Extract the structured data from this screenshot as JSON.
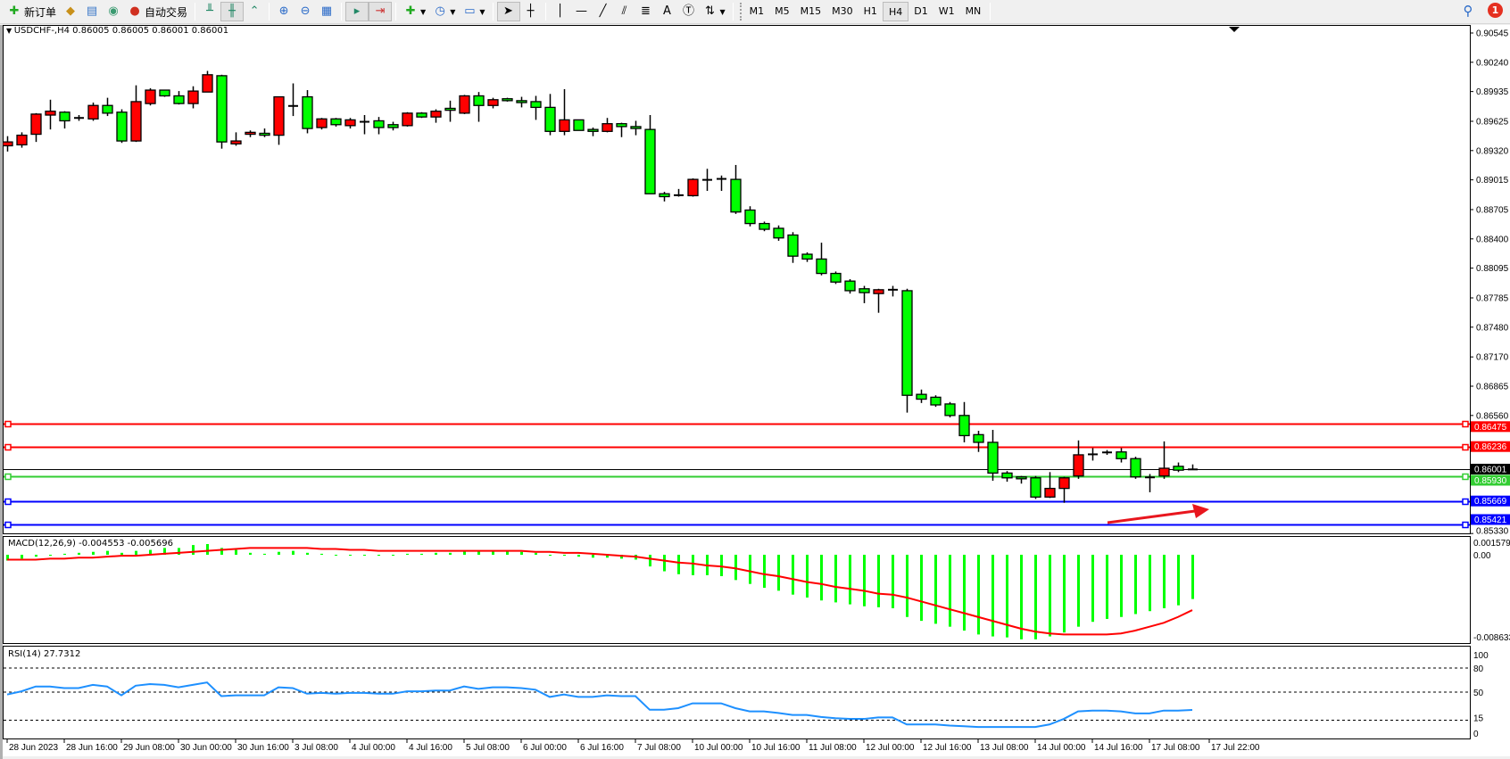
{
  "toolbar": {
    "new_order_label": "新订单",
    "auto_trading_label": "自动交易",
    "icons": [
      "new-order-icon",
      "gold-icon",
      "market-watch-icon",
      "signals-icon",
      "auto-trading-icon",
      "bar-chart-icon",
      "candlestick-icon",
      "line-chart-icon",
      "zoom-in-icon",
      "zoom-out-icon",
      "tile-windows-icon",
      "chart-shift-icon",
      "autoscroll-icon",
      "new-indicator-icon",
      "periods-icon",
      "templates-icon",
      "cursor-icon",
      "crosshair-icon",
      "vertical-line-icon",
      "horizontal-line-icon",
      "trendline-icon",
      "equidistant-channel-icon",
      "fibonacci-icon",
      "text-icon",
      "text-label-icon",
      "arrows-icon"
    ],
    "text_tool": "A",
    "timeframes": [
      "M1",
      "M5",
      "M15",
      "M30",
      "H1",
      "H4",
      "D1",
      "W1",
      "MN"
    ],
    "active_timeframe": "H4",
    "notification_count": "1"
  },
  "chart": {
    "title": "USDCHF-,H4  0.86005 0.86005 0.86001 0.86001",
    "bull_color": "#ff0000",
    "bear_color": "#00ff00"
  },
  "chart_data": [
    {
      "type": "candlestick",
      "symbol": "USDCHF-",
      "timeframe": "H4",
      "price_ticks": [
        "0.90545",
        "0.90240",
        "0.89935",
        "0.89625",
        "0.89320",
        "0.89015",
        "0.88705",
        "0.88400",
        "0.88095",
        "0.87785",
        "0.87480",
        "0.87170",
        "0.86865",
        "0.86560",
        "0.85330"
      ],
      "time_labels": [
        "28 Jun 2023",
        "28 Jun 16:00",
        "29 Jun 08:00",
        "30 Jun 00:00",
        "30 Jun 16:00",
        "3 Jul 08:00",
        "4 Jul 00:00",
        "4 Jul 16:00",
        "5 Jul 08:00",
        "6 Jul 00:00",
        "6 Jul 16:00",
        "7 Jul 08:00",
        "10 Jul 00:00",
        "10 Jul 16:00",
        "11 Jul 08:00",
        "12 Jul 00:00",
        "12 Jul 16:00",
        "13 Jul 08:00",
        "14 Jul 00:00",
        "14 Jul 16:00",
        "17 Jul 08:00",
        "17 Jul 22:00"
      ],
      "ohlc_columns": [
        "open",
        "high",
        "low",
        "close"
      ],
      "candles": [
        [
          0.8937,
          0.8947,
          0.8931,
          0.8941
        ],
        [
          0.8938,
          0.8951,
          0.8935,
          0.8948
        ],
        [
          0.8949,
          0.8971,
          0.8941,
          0.897
        ],
        [
          0.8969,
          0.8985,
          0.8954,
          0.8973
        ],
        [
          0.8972,
          0.8973,
          0.8955,
          0.8963
        ],
        [
          0.8966,
          0.8969,
          0.8963,
          0.8966
        ],
        [
          0.8965,
          0.8982,
          0.8963,
          0.8979
        ],
        [
          0.8979,
          0.8987,
          0.8968,
          0.8971
        ],
        [
          0.8972,
          0.8975,
          0.894,
          0.8942
        ],
        [
          0.8942,
          0.9,
          0.8941,
          0.8983
        ],
        [
          0.8981,
          0.8997,
          0.8979,
          0.8995
        ],
        [
          0.8995,
          0.8995,
          0.8988,
          0.8989
        ],
        [
          0.8989,
          0.8994,
          0.898,
          0.8981
        ],
        [
          0.8981,
          0.8999,
          0.8976,
          0.8994
        ],
        [
          0.8993,
          0.9015,
          0.8993,
          0.9011
        ],
        [
          0.901,
          0.9011,
          0.8934,
          0.8941
        ],
        [
          0.8939,
          0.8951,
          0.8937,
          0.8942
        ],
        [
          0.8949,
          0.8953,
          0.8946,
          0.8951
        ],
        [
          0.895,
          0.8955,
          0.8946,
          0.8948
        ],
        [
          0.8948,
          0.8988,
          0.8938,
          0.8988
        ],
        [
          0.8978,
          0.9002,
          0.8968,
          0.8979
        ],
        [
          0.8988,
          0.8995,
          0.895,
          0.8955
        ],
        [
          0.8956,
          0.8966,
          0.8954,
          0.8965
        ],
        [
          0.8965,
          0.8966,
          0.8957,
          0.8959
        ],
        [
          0.8958,
          0.8966,
          0.8955,
          0.8964
        ],
        [
          0.8962,
          0.8969,
          0.8949,
          0.8962
        ],
        [
          0.8963,
          0.8967,
          0.8949,
          0.8956
        ],
        [
          0.8959,
          0.8962,
          0.8953,
          0.8956
        ],
        [
          0.8958,
          0.8972,
          0.8957,
          0.8971
        ],
        [
          0.8971,
          0.8972,
          0.8966,
          0.8967
        ],
        [
          0.8967,
          0.8975,
          0.8961,
          0.8973
        ],
        [
          0.8976,
          0.8984,
          0.8962,
          0.8974
        ],
        [
          0.8971,
          0.899,
          0.897,
          0.8989
        ],
        [
          0.8989,
          0.8993,
          0.8962,
          0.8979
        ],
        [
          0.8979,
          0.8987,
          0.8976,
          0.8985
        ],
        [
          0.8986,
          0.8987,
          0.8983,
          0.8984
        ],
        [
          0.8984,
          0.8988,
          0.8977,
          0.8982
        ],
        [
          0.8983,
          0.8989,
          0.8964,
          0.8977
        ],
        [
          0.8977,
          0.8991,
          0.8948,
          0.8952
        ],
        [
          0.8952,
          0.8996,
          0.8948,
          0.8964
        ],
        [
          0.8964,
          0.8964,
          0.8953,
          0.8953
        ],
        [
          0.8954,
          0.8956,
          0.8947,
          0.8952
        ],
        [
          0.8952,
          0.8966,
          0.8951,
          0.896
        ],
        [
          0.896,
          0.8961,
          0.8946,
          0.8957
        ],
        [
          0.8957,
          0.8963,
          0.8948,
          0.8955
        ],
        [
          0.8954,
          0.8969,
          0.8887,
          0.8887
        ],
        [
          0.8887,
          0.8889,
          0.8879,
          0.8884
        ],
        [
          0.8886,
          0.8892,
          0.8884,
          0.8885
        ],
        [
          0.8885,
          0.8903,
          0.8884,
          0.8902
        ],
        [
          0.8902,
          0.8913,
          0.889,
          0.8901
        ],
        [
          0.8903,
          0.8906,
          0.889,
          0.8902
        ],
        [
          0.8902,
          0.8917,
          0.8866,
          0.8868
        ],
        [
          0.887,
          0.8874,
          0.8853,
          0.8856
        ],
        [
          0.8856,
          0.8858,
          0.8848,
          0.885
        ],
        [
          0.8851,
          0.8854,
          0.8838,
          0.8841
        ],
        [
          0.8844,
          0.8847,
          0.8815,
          0.8822
        ],
        [
          0.8824,
          0.8826,
          0.8816,
          0.8819
        ],
        [
          0.8819,
          0.8836,
          0.8802,
          0.8804
        ],
        [
          0.8804,
          0.8806,
          0.8793,
          0.8795
        ],
        [
          0.8796,
          0.8798,
          0.8783,
          0.8786
        ],
        [
          0.8788,
          0.8791,
          0.8773,
          0.8784
        ],
        [
          0.8783,
          0.8788,
          0.8763,
          0.8787
        ],
        [
          0.8787,
          0.8791,
          0.878,
          0.8787
        ],
        [
          0.8786,
          0.8788,
          0.8659,
          0.8677
        ],
        [
          0.8678,
          0.8683,
          0.8669,
          0.8673
        ],
        [
          0.8675,
          0.8677,
          0.8665,
          0.8667
        ],
        [
          0.8668,
          0.867,
          0.8654,
          0.8656
        ],
        [
          0.8656,
          0.867,
          0.8628,
          0.8635
        ],
        [
          0.8636,
          0.864,
          0.8618,
          0.8628
        ],
        [
          0.8628,
          0.8641,
          0.8588,
          0.8596
        ],
        [
          0.8596,
          0.8598,
          0.8587,
          0.8591
        ],
        [
          0.8592,
          0.8593,
          0.8585,
          0.859
        ],
        [
          0.8591,
          0.8593,
          0.8569,
          0.8571
        ],
        [
          0.8571,
          0.8597,
          0.857,
          0.858
        ],
        [
          0.858,
          0.8592,
          0.8565,
          0.8591
        ],
        [
          0.8593,
          0.863,
          0.859,
          0.8615
        ],
        [
          0.8615,
          0.8622,
          0.8609,
          0.8616
        ],
        [
          0.8617,
          0.862,
          0.8615,
          0.8618
        ],
        [
          0.8618,
          0.8622,
          0.8607,
          0.8611
        ],
        [
          0.8611,
          0.8613,
          0.859,
          0.8592
        ],
        [
          0.8592,
          0.8595,
          0.8576,
          0.8591
        ],
        [
          0.8593,
          0.8629,
          0.859,
          0.8601
        ],
        [
          0.8603,
          0.8607,
          0.8597,
          0.8599
        ],
        [
          0.85995,
          0.8605,
          0.85995,
          0.86001
        ]
      ],
      "levels": [
        {
          "price": "0.86475",
          "color": "#ff0000"
        },
        {
          "price": "0.86236",
          "color": "#ff0000"
        },
        {
          "price": "0.86001",
          "color": "#000000"
        },
        {
          "price": "0.85930",
          "color": "#32cd32"
        },
        {
          "price": "0.85669",
          "color": "#0000ff"
        },
        {
          "price": "0.85421",
          "color": "#0000ff"
        }
      ],
      "annotation": {
        "type": "arrow",
        "color": "#e8161e"
      }
    },
    {
      "type": "bar",
      "indicator": "MACD",
      "label": "MACD(12,26,9) -0.004553 -0.005696",
      "ylim": [
        -0.008633,
        0.001579
      ],
      "tick_labels": [
        "0.001579",
        "0.00",
        "-0.008633"
      ],
      "histogram_color": "#00ff00",
      "signal_color": "#ff0000",
      "histogram": [
        -0.0006,
        -0.0004,
        -0.0002,
        -0.0001,
        0.0001,
        0.0002,
        0.0003,
        0.0004,
        0.0002,
        0.0004,
        0.0005,
        0.0007,
        0.0007,
        0.001,
        0.0011,
        0.0007,
        0.0005,
        0.0002,
        0.0001,
        0.0003,
        0.0004,
        0.0002,
        0.0001,
        0,
        0,
        0,
        -0.0001,
        0,
        0.0001,
        0.0001,
        0.0002,
        0.0002,
        0.0004,
        0.0004,
        0.0004,
        0.0004,
        0.0003,
        0.0002,
        -0.0001,
        -0.0001,
        -0.0002,
        -0.0003,
        -0.0003,
        -0.0004,
        -0.0005,
        -0.0012,
        -0.0017,
        -0.002,
        -0.0021,
        -0.0021,
        -0.0022,
        -0.0026,
        -0.003,
        -0.0034,
        -0.0037,
        -0.0041,
        -0.0044,
        -0.0047,
        -0.0049,
        -0.0051,
        -0.0053,
        -0.0054,
        -0.0055,
        -0.0064,
        -0.0068,
        -0.0071,
        -0.0074,
        -0.0078,
        -0.0082,
        -0.0084,
        -0.0085,
        -0.0087,
        -0.0087,
        -0.0084,
        -0.008,
        -0.0074,
        -0.0069,
        -0.0066,
        -0.0064,
        -0.0061,
        -0.0058,
        -0.0055,
        -0.0052,
        -0.004553
      ],
      "signal": [
        -0.0005,
        -0.0005,
        -0.0005,
        -0.0004,
        -0.0004,
        -0.0003,
        -0.0003,
        -0.0002,
        -0.0001,
        -0.0001,
        0,
        0.0001,
        0.0002,
        0.0003,
        0.0004,
        0.0005,
        0.0006,
        0.0007,
        0.0007,
        0.0007,
        0.0007,
        0.0007,
        0.0006,
        0.0006,
        0.0005,
        0.0005,
        0.0004,
        0.0004,
        0.0004,
        0.0004,
        0.0004,
        0.0004,
        0.0004,
        0.0004,
        0.0004,
        0.0004,
        0.0004,
        0.0003,
        0.0003,
        0.0002,
        0.0002,
        0.0001,
        0,
        -0.0001,
        -0.0002,
        -0.0004,
        -0.0006,
        -0.0008,
        -0.0009,
        -0.0011,
        -0.0012,
        -0.0014,
        -0.0017,
        -0.002,
        -0.0022,
        -0.0025,
        -0.0028,
        -0.003,
        -0.0033,
        -0.0035,
        -0.0037,
        -0.004,
        -0.0041,
        -0.0044,
        -0.0048,
        -0.0052,
        -0.0056,
        -0.006,
        -0.0064,
        -0.0068,
        -0.0072,
        -0.0076,
        -0.0079,
        -0.0081,
        -0.0082,
        -0.0082,
        -0.0082,
        -0.0082,
        -0.0081,
        -0.0078,
        -0.0074,
        -0.007,
        -0.0064,
        -0.005696
      ]
    },
    {
      "type": "line",
      "indicator": "RSI",
      "label": "RSI(14) 27.7312",
      "ylim": [
        0,
        100
      ],
      "tick_labels": [
        "100",
        "80",
        "50",
        "15",
        "0"
      ],
      "levels": [
        80,
        50,
        15
      ],
      "color": "#1e90ff",
      "values": [
        47,
        51,
        57,
        57,
        55,
        55,
        59,
        57,
        46,
        58,
        60,
        59,
        56,
        59,
        62,
        45,
        46,
        46,
        46,
        56,
        55,
        48,
        49,
        48,
        49,
        49,
        48,
        48,
        51,
        51,
        52,
        52,
        57,
        54,
        56,
        56,
        55,
        53,
        44,
        47,
        44,
        44,
        46,
        45,
        45,
        28,
        28,
        30,
        36,
        36,
        36,
        30,
        26,
        26,
        24,
        21.5,
        21.5,
        19,
        17.5,
        16.6,
        16.6,
        18.5,
        18.5,
        9.7,
        9.7,
        9.7,
        8.4,
        7.5,
        6.5,
        6.5,
        6.5,
        6.5,
        6.5,
        9.7,
        16.6,
        26,
        27,
        27,
        26,
        23.5,
        23.5,
        27,
        27,
        27.7312
      ]
    }
  ]
}
